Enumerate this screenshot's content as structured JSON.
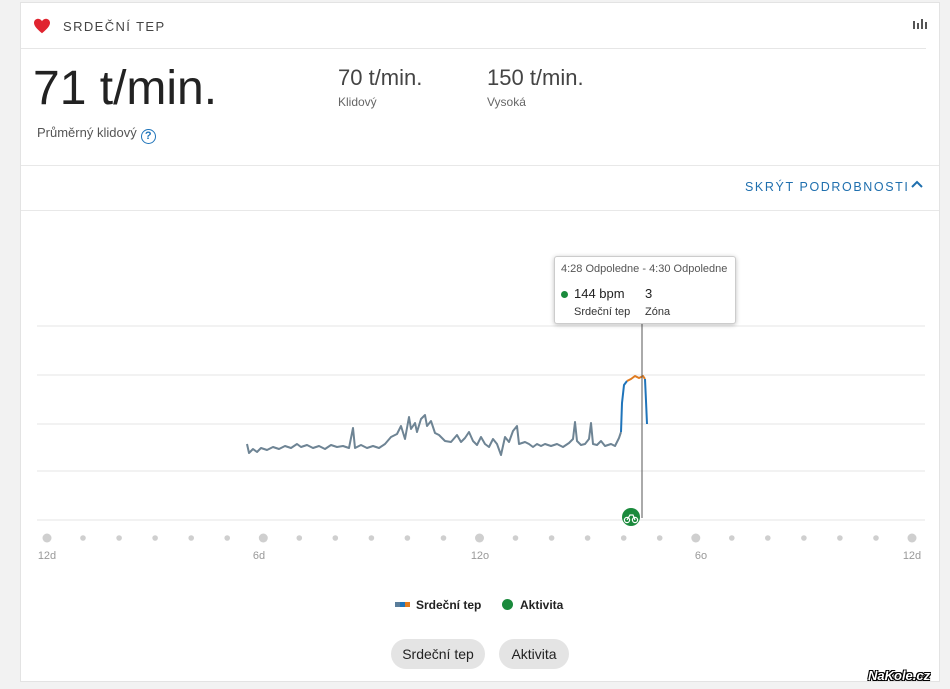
{
  "header": {
    "title": "SRDEČNÍ TEP",
    "heart_icon": "heart-icon",
    "chart_icon": "bar-chart-icon",
    "accent": "#e0242f"
  },
  "summary": {
    "average_value": "71 t/min.",
    "average_label": "Průměrný klidový",
    "help_symbol": "?",
    "resting_value": "70 t/min.",
    "resting_label": "Klidový",
    "high_value": "150 t/min.",
    "high_label": "Vysoká"
  },
  "details_toggle": {
    "label": "SKRÝT PODROBNOSTI",
    "color": "#1f6fae"
  },
  "tooltip": {
    "time": "4:28 Odpoledne - 4:30 Odpoledne",
    "bpm": "144 bpm",
    "bpm_label": "Srdeční tep",
    "zone": "3",
    "zone_label": "Zóna"
  },
  "chart_data": {
    "type": "line",
    "x_ticks": [
      "12d",
      "6d",
      "12o",
      "6o",
      "12d"
    ],
    "series": [
      {
        "name": "Srdeční tep",
        "colors": [
          "#5a7d9a",
          "#1f74ba",
          "#e07b20"
        ]
      }
    ],
    "activity_marker": {
      "name": "Aktivita",
      "icon": "bicycle-icon",
      "color": "#1a8a3c"
    },
    "grid": true
  },
  "legend": {
    "heart_rate": "Srdeční tep",
    "activity": "Aktivita"
  },
  "buttons": {
    "heart_rate": "Srdeční tep",
    "activity": "Aktivita"
  },
  "watermark": "NaKole.cz"
}
